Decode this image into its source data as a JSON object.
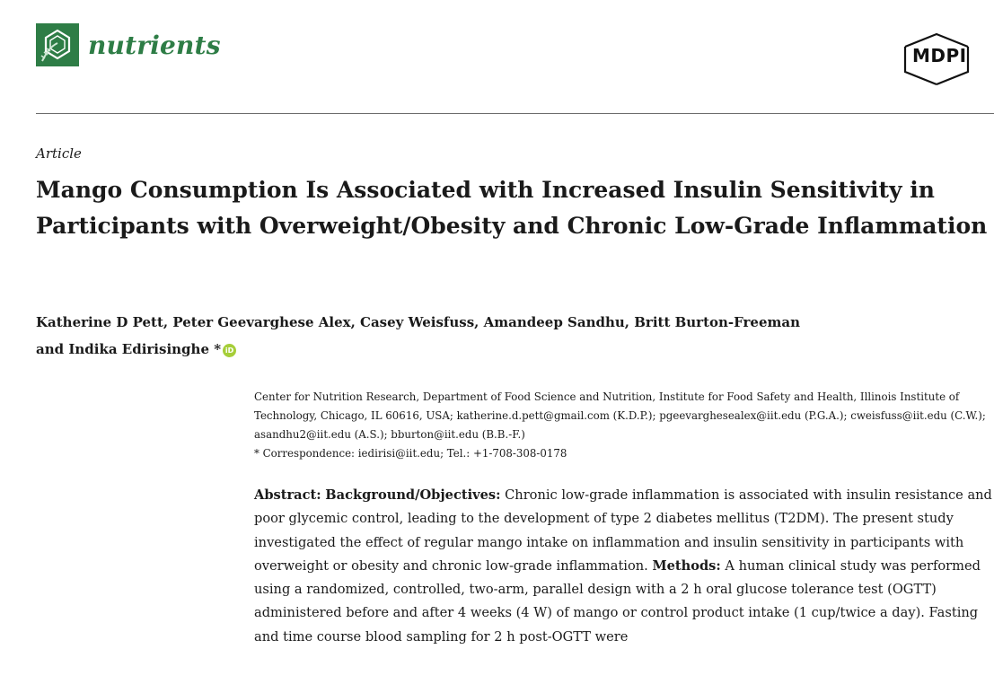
{
  "header": {
    "journal_name": "nutrients",
    "publisher": "MDPI",
    "brand_color": "#2e7d46"
  },
  "article": {
    "type": "Article",
    "title": "Mango Consumption Is Associated with Increased Insulin Sensitivity in Participants with Overweight/Obesity and Chronic Low-Grade Inflammation",
    "authors_line1": "Katherine D Pett, Peter Geevarghese Alex, Casey Weisfuss, Amandeep Sandhu, Britt Burton-Freeman",
    "authors_line2": "and Indika Edirisinghe",
    "corresponding_marker": " *",
    "orcid_label": "iD"
  },
  "affiliation": {
    "text": "Center for Nutrition Research, Department of Food Science and Nutrition, Institute for Food Safety and Health, Illinois Institute of Technology, Chicago, IL 60616, USA; katherine.d.pett@gmail.com (K.D.P.); pgeevarghesealex@iit.edu (P.G.A.); cweisfuss@iit.edu (C.W.); asandhu2@iit.edu (A.S.); bburton@iit.edu (B.B.-F.)",
    "correspondence": "*   Correspondence: iedirisi@iit.edu; Tel.: +1-708-308-0178"
  },
  "abstract": {
    "label": "Abstract:",
    "section1_label": "Background/Objectives:",
    "section1_text": "Chronic low-grade inflammation is associated with insulin resistance and poor glycemic control, leading to the development of type 2 diabetes mellitus (T2DM). The present study investigated the effect of regular mango intake on inflammation and insulin sensitivity in participants with overweight or obesity and chronic low-grade inflammation.",
    "section2_label": "Methods:",
    "section2_text": "A human clinical study was performed using a randomized, controlled, two-arm, parallel design with a 2 h oral glucose tolerance test (OGTT) administered before and after 4 weeks (4 W) of mango or control product intake (1 cup/twice a day).  Fasting and time course blood sampling for 2 h post-OGTT were"
  }
}
